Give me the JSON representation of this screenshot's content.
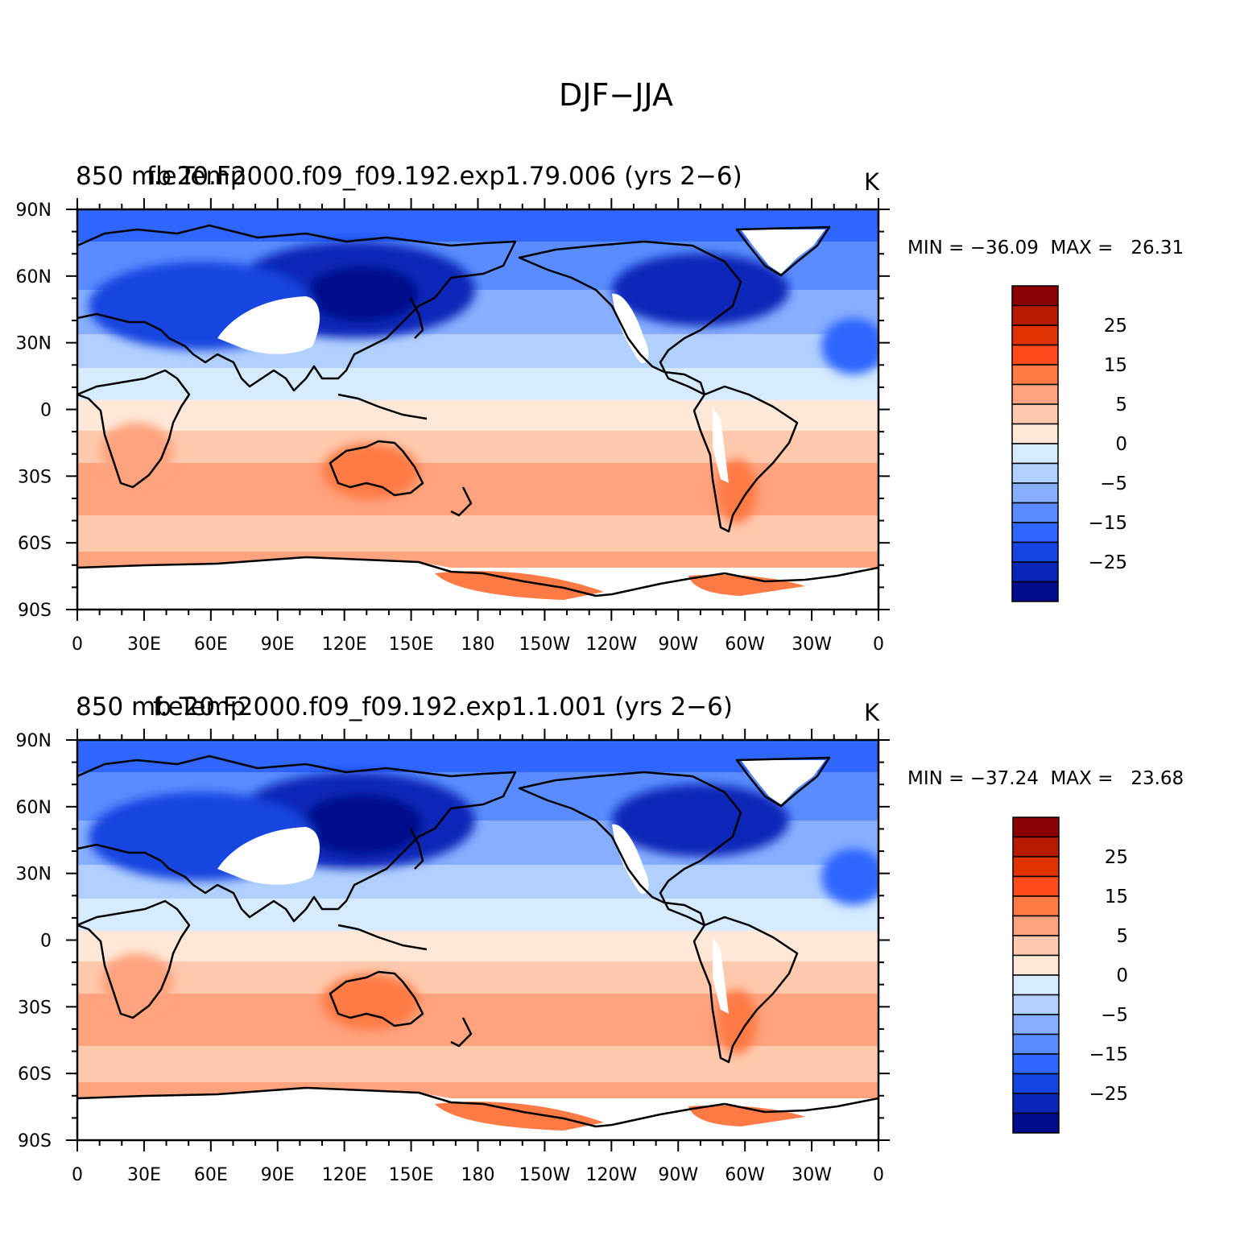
{
  "title": "DJF−JJA",
  "panels": [
    {
      "name": "top",
      "left_label": "850 mb Temp",
      "center_label": "f.e20.F2000.f09_f09.192.exp1.79.006 (yrs 2−6)",
      "units": "K",
      "min_max": "MIN = −36.09  MAX =   26.31"
    },
    {
      "name": "bottom",
      "left_label": "850 mb Temp",
      "center_label": "f.e20.F2000.f09_f09.192.exp1.1.001 (yrs 2−6)",
      "units": "K",
      "min_max": "MIN = −37.24  MAX =   23.68"
    }
  ],
  "lat_ticks": [
    "90N",
    "60N",
    "30N",
    "0",
    "30S",
    "60S",
    "90S"
  ],
  "lon_ticks": [
    "0",
    "30E",
    "60E",
    "90E",
    "120E",
    "150E",
    "180",
    "150W",
    "120W",
    "90W",
    "60W",
    "30W",
    "0"
  ],
  "colorbar": {
    "labels": [
      "25",
      "15",
      "5",
      "0",
      "−5",
      "−15",
      "−25"
    ],
    "colors": [
      "#8b0000",
      "#b81a00",
      "#e03200",
      "#ff4a1c",
      "#ff7a45",
      "#ffa27e",
      "#ffc9ad",
      "#ffe8d8",
      "#d6ebff",
      "#b2d0ff",
      "#87aeff",
      "#5a8cff",
      "#2e66ff",
      "#1545e0",
      "#0a26b8",
      "#000c8a"
    ]
  }
}
